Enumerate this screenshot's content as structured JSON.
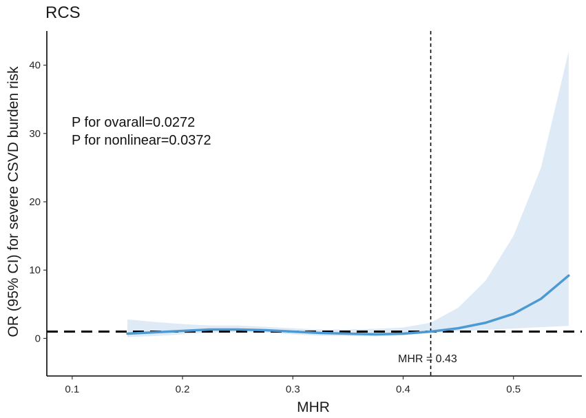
{
  "chart_data": {
    "type": "line",
    "title": "RCS",
    "xlabel": "MHR",
    "ylabel": "OR (95% CI) for severe CSVD burden risk",
    "xlim": [
      0.077,
      0.562
    ],
    "ylim": [
      -5.5,
      45
    ],
    "xticks": [
      0.1,
      0.2,
      0.3,
      0.4,
      0.5
    ],
    "xtick_labels": [
      "0.1",
      "0.2",
      "0.3",
      "0.4",
      "0.5"
    ],
    "yticks": [
      0,
      10,
      20,
      30,
      40
    ],
    "ytick_labels": [
      "0",
      "10",
      "20",
      "30",
      "40"
    ],
    "grid": false,
    "legend": "none",
    "annotations": [
      "P for ovarall=0.0272",
      "P for nonlinear=0.0372"
    ],
    "reference_line_y": 1,
    "reference_line_x": 0.425,
    "reference_label": "MHR = 0.43",
    "colors": {
      "line": "#4d9ad3",
      "band": "#deeaf6",
      "ref": "#000000"
    },
    "series": [
      {
        "x": [
          0.15,
          0.175,
          0.2,
          0.225,
          0.25,
          0.275,
          0.3,
          0.325,
          0.35,
          0.375,
          0.4,
          0.425,
          0.45,
          0.475,
          0.5,
          0.525,
          0.55
        ],
        "y": [
          0.7,
          0.9,
          1.1,
          1.3,
          1.3,
          1.2,
          1.0,
          0.8,
          0.7,
          0.6,
          0.7,
          1.0,
          1.5,
          2.3,
          3.6,
          5.8,
          9.2
        ]
      },
      {
        "x": [
          0.15,
          0.175,
          0.2,
          0.225,
          0.25,
          0.275,
          0.3,
          0.325,
          0.35,
          0.375,
          0.4,
          0.425,
          0.45,
          0.475,
          0.5,
          0.525,
          0.55
        ],
        "y": [
          0.2,
          0.35,
          0.6,
          0.85,
          0.95,
          0.85,
          0.6,
          0.4,
          0.35,
          0.3,
          0.45,
          0.8,
          1.05,
          1.25,
          1.45,
          1.65,
          1.85
        ]
      },
      {
        "x": [
          0.15,
          0.175,
          0.2,
          0.225,
          0.25,
          0.275,
          0.3,
          0.325,
          0.35,
          0.375,
          0.4,
          0.425,
          0.45,
          0.475,
          0.5,
          0.525,
          0.55
        ],
        "y": [
          2.8,
          2.4,
          2.1,
          1.9,
          1.9,
          1.7,
          1.5,
          1.3,
          1.3,
          1.4,
          1.6,
          2.3,
          4.5,
          8.5,
          15.0,
          25.0,
          42.0
        ]
      }
    ]
  }
}
